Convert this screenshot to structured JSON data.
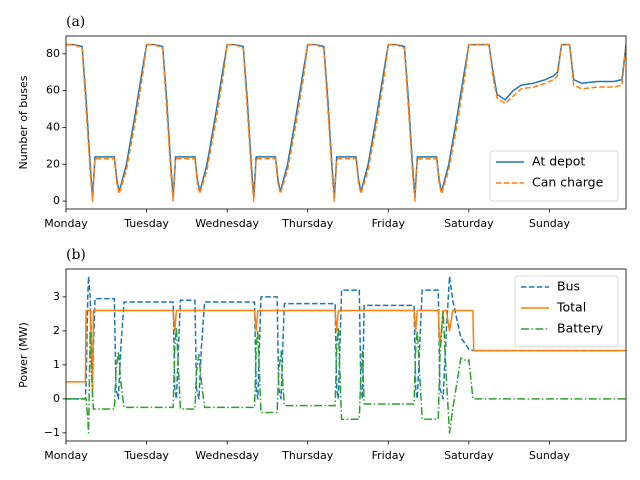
{
  "chart_data": [
    {
      "type": "line",
      "title": "(a)",
      "ylabel": "Number of buses",
      "legend": "lower right",
      "xlim": [
        0,
        6.95
      ],
      "ylim": [
        -4.3,
        89.7
      ],
      "xticks": [
        {
          "value": 0,
          "label": "Monday"
        },
        {
          "value": 1,
          "label": "Tuesday"
        },
        {
          "value": 2,
          "label": "Wednesday"
        },
        {
          "value": 3,
          "label": "Thursday"
        },
        {
          "value": 4,
          "label": "Friday"
        },
        {
          "value": 5,
          "label": "Saturday"
        },
        {
          "value": 6,
          "label": "Sunday"
        }
      ],
      "yticks": [
        0,
        20,
        40,
        60,
        80
      ],
      "x": [
        0,
        0.1,
        0.2,
        0.25,
        0.3,
        0.33,
        0.36,
        0.45,
        0.55,
        0.6,
        0.63,
        0.66,
        0.75,
        0.85,
        0.95,
        1,
        1.1,
        1.2,
        1.25,
        1.3,
        1.33,
        1.36,
        1.45,
        1.55,
        1.6,
        1.63,
        1.66,
        1.75,
        1.85,
        1.95,
        2,
        2.1,
        2.2,
        2.25,
        2.3,
        2.33,
        2.36,
        2.45,
        2.55,
        2.6,
        2.63,
        2.66,
        2.75,
        2.85,
        2.95,
        3,
        3.1,
        3.2,
        3.25,
        3.3,
        3.33,
        3.36,
        3.45,
        3.55,
        3.6,
        3.63,
        3.66,
        3.75,
        3.85,
        3.95,
        4,
        4.1,
        4.2,
        4.25,
        4.3,
        4.33,
        4.36,
        4.45,
        4.55,
        4.6,
        4.63,
        4.66,
        4.75,
        4.85,
        4.95,
        5,
        5.1,
        5.25,
        5.3,
        5.35,
        5.45,
        5.55,
        5.65,
        5.8,
        5.95,
        6.05,
        6.1,
        6.15,
        6.25,
        6.3,
        6.4,
        6.6,
        6.8,
        6.9,
        6.95
      ],
      "series": [
        {
          "name": "At depot",
          "color": "#1f77b4",
          "linestyle": "solid",
          "values": [
            85,
            85,
            84,
            55,
            20,
            2,
            24,
            24,
            24,
            24,
            12,
            5,
            20,
            45,
            72,
            85,
            85,
            84,
            55,
            20,
            2,
            24,
            24,
            24,
            24,
            12,
            5,
            20,
            45,
            72,
            85,
            85,
            84,
            55,
            20,
            2,
            24,
            24,
            24,
            24,
            12,
            5,
            20,
            45,
            72,
            85,
            85,
            84,
            55,
            20,
            2,
            24,
            24,
            24,
            24,
            12,
            5,
            20,
            45,
            72,
            85,
            85,
            84,
            55,
            20,
            2,
            24,
            24,
            24,
            24,
            12,
            5,
            20,
            45,
            72,
            85,
            85,
            85,
            70,
            58,
            55,
            60,
            63,
            64,
            66,
            68,
            70,
            85,
            85,
            66,
            64,
            65,
            65,
            66,
            85
          ]
        },
        {
          "name": "Can charge",
          "color": "#ff7f0e",
          "linestyle": "dashed",
          "values": [
            85,
            85,
            83,
            50,
            16,
            0,
            23,
            23,
            23,
            23,
            10,
            4,
            17,
            41,
            68,
            85,
            85,
            83,
            50,
            16,
            0,
            23,
            23,
            23,
            23,
            10,
            4,
            17,
            41,
            68,
            85,
            85,
            83,
            50,
            16,
            0,
            23,
            23,
            23,
            23,
            10,
            4,
            17,
            41,
            68,
            85,
            85,
            83,
            50,
            16,
            0,
            23,
            23,
            23,
            23,
            10,
            4,
            17,
            41,
            68,
            85,
            85,
            83,
            50,
            16,
            0,
            23,
            23,
            23,
            23,
            10,
            4,
            17,
            41,
            68,
            85,
            85,
            85,
            67,
            56,
            53,
            57,
            61,
            62,
            64,
            66,
            68,
            85,
            85,
            63,
            61,
            62,
            62,
            63,
            85
          ]
        }
      ]
    },
    {
      "type": "line",
      "title": "(b)",
      "ylabel": "Power (MW)",
      "legend": "upper right",
      "xlim": [
        0,
        6.95
      ],
      "ylim": [
        -1.24,
        3.82
      ],
      "xticks": [
        {
          "value": 0,
          "label": "Monday"
        },
        {
          "value": 1,
          "label": "Tuesday"
        },
        {
          "value": 2,
          "label": "Wednesday"
        },
        {
          "value": 3,
          "label": "Thursday"
        },
        {
          "value": 4,
          "label": "Friday"
        },
        {
          "value": 5,
          "label": "Saturday"
        },
        {
          "value": 6,
          "label": "Sunday"
        }
      ],
      "yticks": [
        {
          "value": -1,
          "label": "−1"
        },
        0,
        1,
        2,
        3
      ],
      "x": [
        0,
        0.24,
        0.25,
        0.27,
        0.28,
        0.3,
        0.33,
        0.34,
        0.36,
        0.6,
        0.62,
        0.65,
        0.68,
        0.72,
        1.33,
        1.35,
        1.37,
        1.42,
        1.6,
        1.62,
        1.65,
        1.68,
        1.72,
        2.34,
        2.36,
        2.38,
        2.42,
        2.62,
        2.64,
        2.67,
        2.69,
        2.71,
        3.34,
        3.36,
        3.38,
        3.42,
        3.64,
        3.66,
        3.68,
        3.7,
        4.32,
        4.34,
        4.36,
        4.42,
        4.62,
        4.64,
        4.68,
        4.72,
        4.76,
        4.8,
        4.9,
        4.99,
        5.0,
        5.05,
        5.06,
        6.95
      ],
      "series": [
        {
          "name": "Bus",
          "color": "#1f77b4",
          "linestyle": "dashed",
          "values": [
            0,
            0,
            0.5,
            3.0,
            3.6,
            3.0,
            0.5,
            1.5,
            2.95,
            2.95,
            0.3,
            0,
            1.5,
            2.85,
            2.85,
            0.3,
            0,
            2.9,
            2.9,
            0.3,
            0,
            1.5,
            2.85,
            2.85,
            0.3,
            0,
            3.0,
            3.0,
            0.3,
            0,
            1.5,
            2.8,
            2.8,
            0.3,
            0,
            3.2,
            3.2,
            0.3,
            0,
            2.75,
            2.75,
            0.3,
            0,
            3.2,
            3.2,
            0.3,
            0,
            2.0,
            3.6,
            2.9,
            1.8,
            1.5,
            1.45,
            1.42,
            1.42,
            1.42
          ]
        },
        {
          "name": "Total",
          "color": "#ff7f0e",
          "linestyle": "solid",
          "values": [
            0.5,
            0.5,
            2.6,
            2.6,
            2.6,
            2.6,
            0.05,
            2.6,
            2.6,
            2.6,
            2.6,
            2.6,
            2.6,
            2.6,
            2.6,
            2.0,
            2.6,
            2.6,
            2.6,
            2.6,
            2.6,
            2.6,
            2.6,
            2.6,
            2.0,
            2.6,
            2.6,
            2.6,
            2.6,
            2.6,
            2.6,
            2.6,
            2.6,
            2.0,
            2.6,
            2.6,
            2.6,
            2.6,
            2.6,
            2.6,
            2.6,
            2.0,
            2.6,
            2.6,
            2.6,
            1.5,
            2.6,
            2.6,
            2.0,
            2.6,
            2.6,
            2.6,
            2.6,
            2.6,
            1.42,
            1.42
          ]
        },
        {
          "name": "Battery",
          "color": "#2ca02c",
          "linestyle": "dashdot",
          "values": [
            0,
            0,
            0,
            -0.6,
            -1.0,
            2.0,
            0,
            -0.3,
            -0.3,
            -0.3,
            0.8,
            1.4,
            0.5,
            -0.25,
            -0.25,
            1.5,
            2.1,
            -0.3,
            -0.3,
            0.8,
            1.3,
            0.5,
            -0.25,
            -0.25,
            1.5,
            2.0,
            -0.4,
            -0.4,
            0.8,
            1.4,
            0.5,
            -0.2,
            -0.2,
            1.5,
            2.1,
            -0.6,
            -0.6,
            0.8,
            1.4,
            -0.15,
            -0.15,
            1.5,
            2.0,
            -0.6,
            -0.6,
            1.2,
            2.6,
            0.6,
            -1.0,
            -0.3,
            1.2,
            1.1,
            1.15,
            0,
            0,
            0
          ]
        }
      ]
    }
  ]
}
